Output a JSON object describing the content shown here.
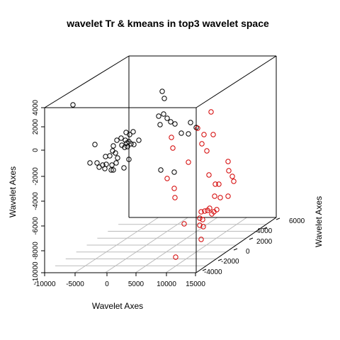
{
  "chart_data": {
    "type": "scatter",
    "title": "wavelet Tr & kmeans in top3 wavelet space",
    "xlabel": "Wavelet Axes",
    "ylabel": "Wavelet Axes",
    "zlabel": "Wavelet Axes",
    "x_ticks": [
      "-10000",
      "-5000",
      "0",
      "5000",
      "10000",
      "15000"
    ],
    "y_ticks": [
      "-4000",
      "-2000",
      "0",
      "2000",
      "4000",
      "6000"
    ],
    "z_ticks": [
      "-10000",
      "-8000",
      "-6000",
      "-4000",
      "-2000",
      "0",
      "2000",
      "4000"
    ],
    "xlim": [
      -10000,
      15000
    ],
    "ylim": [
      -5000,
      6000
    ],
    "zlim": [
      -10000,
      4000
    ],
    "colors": {
      "cluster_1": "#000000",
      "cluster_2": "#d40000",
      "box": "#000000",
      "grid": "#bbbbbb"
    },
    "series": [
      {
        "values": [
          [
            103,
            148
          ],
          [
            229,
            129
          ],
          [
            232,
            139
          ],
          [
            224,
            164
          ],
          [
            231,
            161
          ],
          [
            236,
            167
          ],
          [
            226,
            176
          ],
          [
            247,
            175
          ],
          [
            241,
            172
          ],
          [
            269,
            173
          ],
          [
            277,
            180
          ],
          [
            256,
            188
          ],
          [
            266,
            189
          ],
          [
            178,
            187
          ],
          [
            183,
            190
          ],
          [
            188,
            186
          ],
          [
            171,
            195
          ],
          [
            177,
            198
          ],
          [
            182,
            200
          ],
          [
            185,
            203
          ],
          [
            196,
            198
          ],
          [
            165,
            198
          ],
          [
            160,
            206
          ],
          [
            172,
            205
          ],
          [
            176,
            208
          ],
          [
            179,
            202
          ],
          [
            189,
            204
          ],
          [
            180,
            207
          ],
          [
            134,
            204
          ],
          [
            159,
            213
          ],
          [
            155,
            220
          ],
          [
            163,
            216
          ],
          [
            149,
            221
          ],
          [
            166,
            223
          ],
          [
            164,
            230
          ],
          [
            182,
            225
          ],
          [
            158,
            233
          ],
          [
            150,
            232
          ],
          [
            145,
            233
          ],
          [
            137,
            230
          ],
          [
            127,
            230
          ],
          [
            140,
            236
          ],
          [
            148,
            238
          ],
          [
            157,
            240
          ],
          [
            160,
            240
          ],
          [
            175,
            237
          ],
          [
            227,
            240
          ],
          [
            246,
            243
          ]
        ]
      },
      {
        "values": [
          [
            298,
            158
          ],
          [
            279,
            181
          ],
          [
            288,
            190
          ],
          [
            301,
            190
          ],
          [
            285,
            203
          ],
          [
            242,
            194
          ],
          [
            244,
            209
          ],
          [
            266,
            229
          ],
          [
            292,
            213
          ],
          [
            295,
            247
          ],
          [
            236,
            252
          ],
          [
            246,
            266
          ],
          [
            247,
            279
          ],
          [
            322,
            228
          ],
          [
            323,
            241
          ],
          [
            328,
            249
          ],
          [
            330,
            256
          ],
          [
            309,
            260
          ],
          [
            304,
            260
          ],
          [
            322,
            277
          ],
          [
            303,
            277
          ],
          [
            311,
            279
          ],
          [
            296,
            294
          ],
          [
            293,
            297
          ],
          [
            289,
            298
          ],
          [
            284,
            299
          ],
          [
            306,
            296
          ],
          [
            302,
            299
          ],
          [
            299,
            302
          ],
          [
            286,
            310
          ],
          [
            282,
            308
          ],
          [
            260,
            316
          ],
          [
            282,
            318
          ],
          [
            287,
            320
          ],
          [
            284,
            338
          ],
          [
            248,
            363
          ]
        ]
      }
    ]
  }
}
